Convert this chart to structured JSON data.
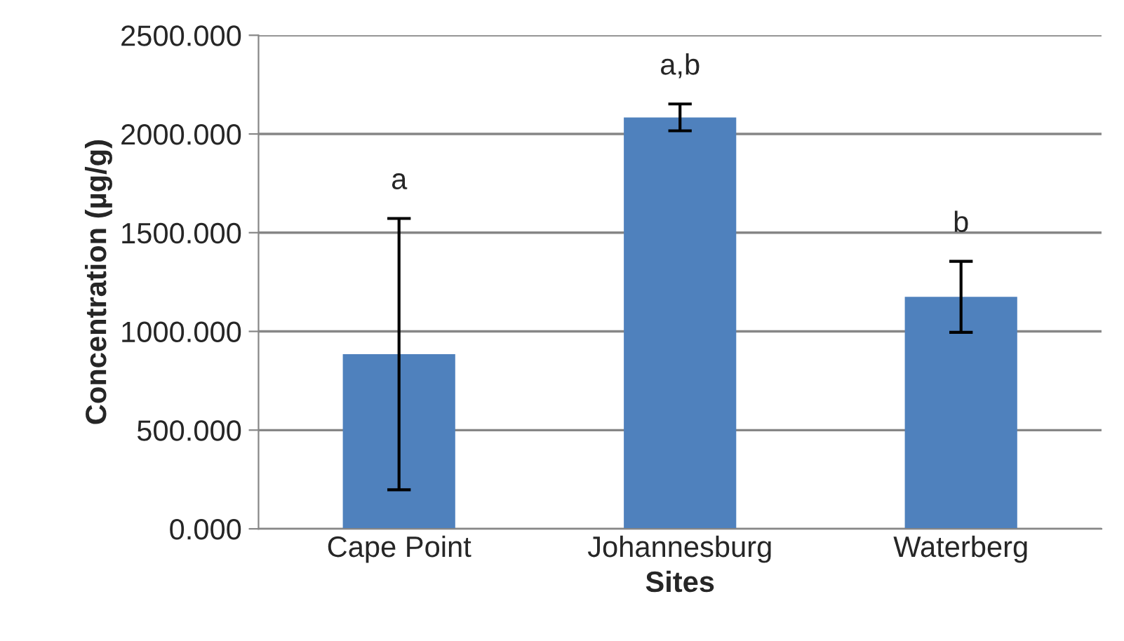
{
  "chart_data": {
    "type": "bar",
    "xlabel": "Sites",
    "ylabel": "Concentration (µg/g)",
    "categories": [
      "Cape Point",
      "Johannesburg",
      "Waterberg"
    ],
    "values": [
      885,
      2084,
      1175
    ],
    "errors": [
      687,
      68,
      180
    ],
    "color": "#4f81bd",
    "ylim": [
      0,
      2500
    ],
    "yticks": [
      {
        "value": 0,
        "label": "0.000"
      },
      {
        "value": 500,
        "label": "500.000"
      },
      {
        "value": 1000,
        "label": "1000.000"
      },
      {
        "value": 1500,
        "label": "1500.000"
      },
      {
        "value": 2000,
        "label": "2000.000"
      },
      {
        "value": 2500,
        "label": "2500.000"
      }
    ],
    "grid": "y",
    "annotations": [
      "a",
      "a,b",
      "b"
    ]
  }
}
